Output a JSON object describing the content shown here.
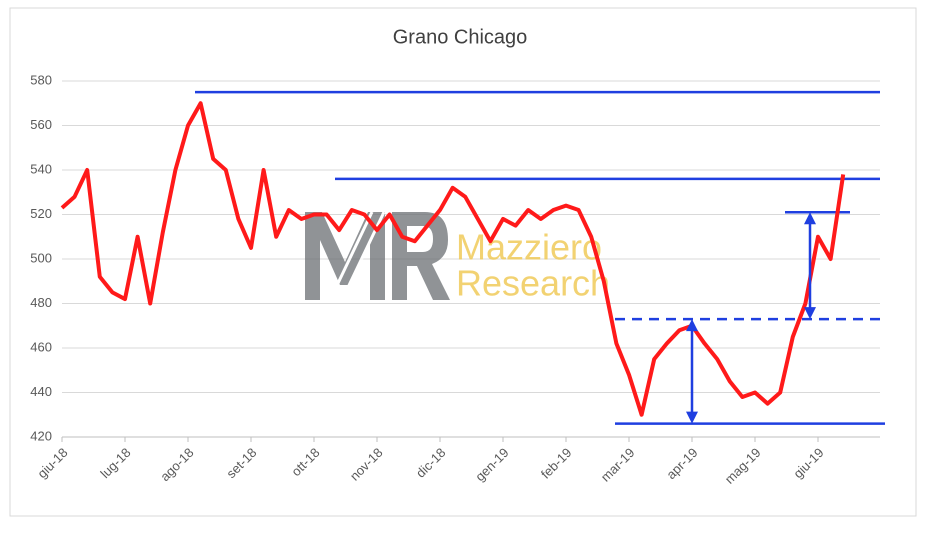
{
  "chart_data": {
    "type": "line",
    "title": "Grano Chicago",
    "categories": [
      "giu-18",
      null,
      null,
      null,
      null,
      "lug-18",
      null,
      null,
      null,
      null,
      "ago-18",
      null,
      null,
      null,
      null,
      "set-18",
      null,
      null,
      null,
      null,
      "ott-18",
      null,
      null,
      null,
      null,
      "nov-18",
      null,
      null,
      null,
      null,
      "dic-18",
      null,
      null,
      null,
      null,
      "gen-19",
      null,
      null,
      null,
      null,
      "feb-19",
      null,
      null,
      null,
      null,
      "mar-19",
      null,
      null,
      null,
      null,
      "apr-19",
      null,
      null,
      null,
      null,
      "mag-19",
      null,
      null,
      null,
      null,
      "giu-19",
      null,
      null
    ],
    "series": [
      {
        "name": "Grano Chicago",
        "color": "#ff1a1a",
        "values": [
          523,
          528,
          540,
          492,
          485,
          482,
          510,
          480,
          512,
          540,
          560,
          570,
          545,
          540,
          518,
          505,
          540,
          510,
          522,
          518,
          520,
          520,
          513,
          522,
          520,
          513,
          520,
          510,
          508,
          515,
          522,
          532,
          528,
          518,
          508,
          518,
          515,
          522,
          518,
          522,
          524,
          522,
          510,
          490,
          462,
          448,
          430,
          455,
          462,
          468,
          470,
          462,
          455,
          445,
          438,
          440,
          435,
          440,
          465,
          480,
          510,
          500,
          538
        ]
      }
    ],
    "ylim": [
      420,
      580
    ],
    "yticks": [
      420,
      440,
      460,
      480,
      500,
      520,
      540,
      560,
      580
    ],
    "grid": true,
    "reference_lines": [
      {
        "value": 575,
        "color": "#1f3fe0"
      },
      {
        "value": 536,
        "color": "#1f3fe0"
      },
      {
        "value": 521,
        "color": "#1f3fe0"
      },
      {
        "value": 473,
        "color": "#1f3fe0",
        "dashed": true
      },
      {
        "value": 426,
        "color": "#1f3fe0"
      }
    ],
    "watermark": [
      "Mazziero",
      "Research"
    ]
  }
}
